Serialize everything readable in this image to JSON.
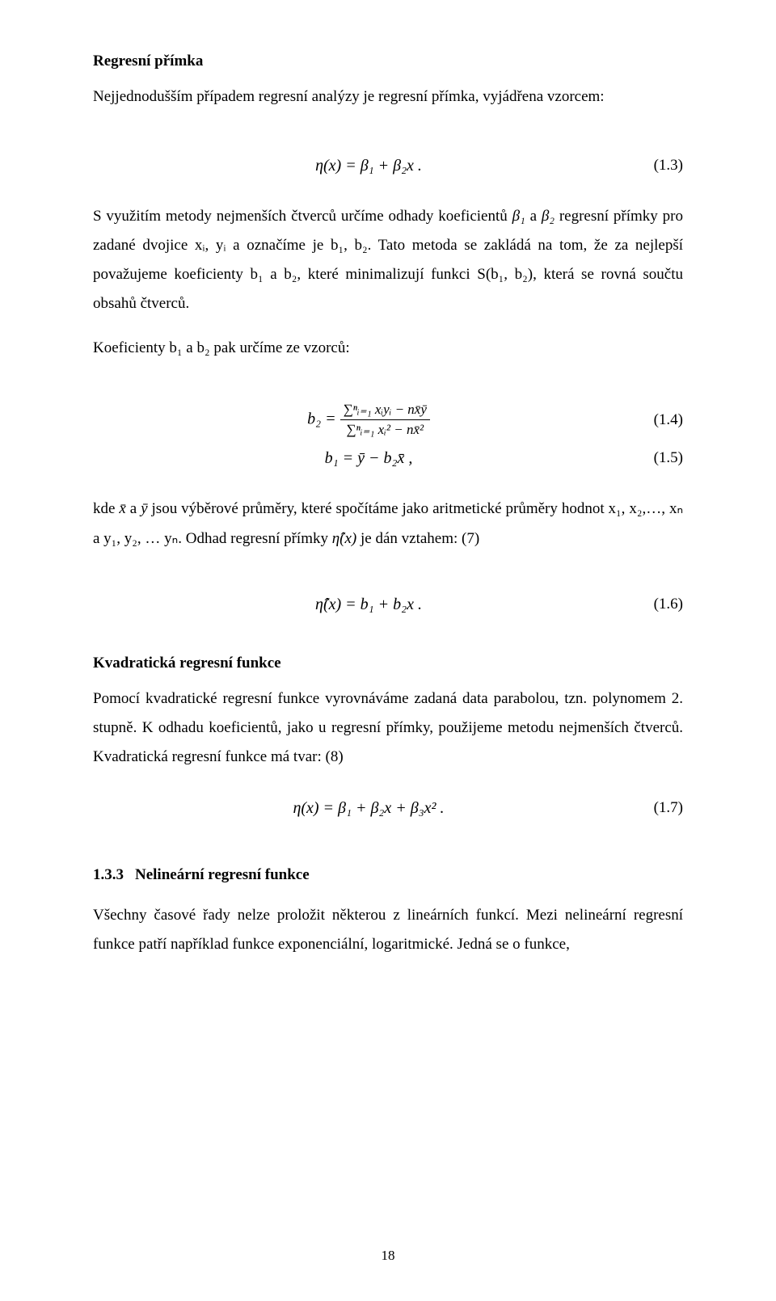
{
  "section1": {
    "heading": "Regresní přímka",
    "intro": "Nejjednodušším případem regresní analýzy je regresní přímka, vyjádřena vzorcem:"
  },
  "eq13": {
    "expr": "η(x) =  β₁ +  β₂x .",
    "num": "(1.3)"
  },
  "para1": {
    "l1_pre": "S využitím metody nejmenších čtverců určíme odhady koeficientů ",
    "l1_b1": "β₁",
    "l1_mid": " a ",
    "l1_b2": "β₂",
    "l1_post": " regresní",
    "l2": "přímky pro zadané dvojice xᵢ, yᵢ a označíme je b₁, b₂. Tato metoda se zakládá na tom, že",
    "l3": "za nejlepší považujeme koeficienty b₁ a b₂, které minimalizují funkci S(b₁, b₂), která se",
    "l4": "rovná součtu obsahů čtverců."
  },
  "para2": "Koeficienty b₁ a b₂ pak určíme ze vzorců:",
  "eq14": {
    "lead": "b₂ = ",
    "num_expr": "∑ⁿᵢ₌₁ xᵢyᵢ − nx̄ȳ",
    "den_expr": "∑ⁿᵢ₌₁ xᵢ² − nx̄²",
    "num": "(1.4)"
  },
  "eq15": {
    "expr": "b₁ =  ȳ −  b₂x̄ ,",
    "num": "(1.5)"
  },
  "para3": {
    "l1_pre": "kde ",
    "l1_x": "x̄",
    "l1_mid1": " a ",
    "l1_y": "ȳ",
    "l1_post": "  jsou výběrové průměry, které spočítáme jako aritmetické průměry hodnot x₁,",
    "l2_pre": "x₂,…, xₙ a y₁, y₂, … yₙ. Odhad regresní přímky ",
    "l2_eta": "η̂(x)",
    "l2_post": " je dán vztahem: (7)"
  },
  "eq16": {
    "expr": "η̂(x) =  b₁ +  b₂x .",
    "num": "(1.6)"
  },
  "section2": {
    "heading": "Kvadratická regresní funkce",
    "l1": "Pomocí  kvadratické  regresní  funkce  vyrovnáváme  zadaná  data  parabolou,  tzn.",
    "l2": "polynomem 2. stupně. K odhadu koeficientů, jako u regresní přímky, použijeme metodu",
    "l3": "nejmenších čtverců. Kvadratická regresní funkce má tvar: (8)"
  },
  "eq17": {
    "expr": "η(x) =  β₁ + β₂x + β₃x² .",
    "num": "(1.7)"
  },
  "section3": {
    "num": "1.3.3",
    "title": "Nelineární regresní funkce",
    "l1": "Všechny  časové  řady  nelze  proložit  některou  z lineárních  funkcí.  Mezi  nelineární",
    "l2": "regresní funkce patří například funkce exponenciální, logaritmické. Jedná se o funkce,"
  },
  "page": "18"
}
